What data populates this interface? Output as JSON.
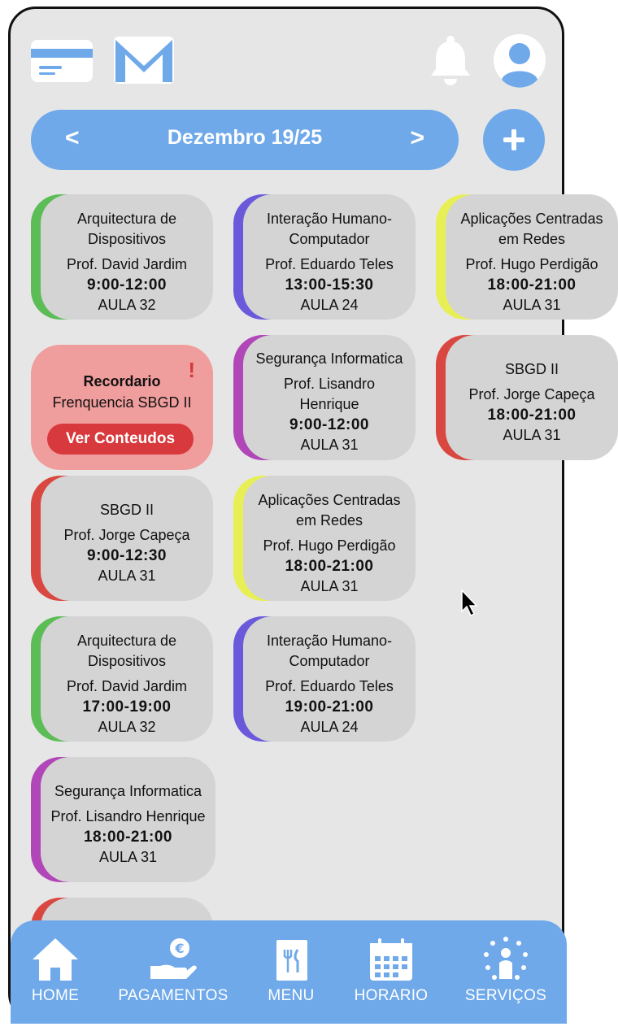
{
  "header": {
    "card_icon": "credit-card-icon",
    "mail_icon": "mail-icon",
    "bell_icon": "bell-icon",
    "avatar_icon": "user-avatar-icon"
  },
  "calendar": {
    "prev": "<",
    "month_label": "Dezembro 19/25",
    "next": ">",
    "add": "+"
  },
  "colors": {
    "accent": "#6fa9ea",
    "card_bg": "#d4d4d4",
    "green": "#5cbd56",
    "purple": "#6a5adb",
    "yellow": "#e8ef55",
    "red": "#d94840",
    "magenta": "#b146b8",
    "reminder_bg": "#f09d9d",
    "reminder_btn": "#d8393c"
  },
  "courses": [
    {
      "name": "Arquitectura de Dispositivos",
      "prof": "Prof. David Jardim",
      "time": "9:00-12:00",
      "room": "AULA 32",
      "color": "#5cbd56"
    },
    {
      "name": "Interação Humano-Computador",
      "prof": "Prof. Eduardo Teles",
      "time": "13:00-15:30",
      "room": "AULA 24",
      "color": "#6a5adb"
    },
    {
      "name": "Aplicações Centradas em Redes",
      "prof": "Prof. Hugo Perdigão",
      "time": "18:00-21:00",
      "room": "AULA 31",
      "color": "#e8ef55"
    },
    {
      "name": "Segurança Informatica",
      "prof": "Prof. Lisandro Henrique",
      "time": "9:00-12:00",
      "room": "AULA 31",
      "color": "#b146b8"
    },
    {
      "name": "SBGD II",
      "prof": "Prof. Jorge Capeça",
      "time": "18:00-21:00",
      "room": "AULA 31",
      "color": "#d94840"
    },
    {
      "name": "SBGD II",
      "prof": "Prof. Jorge Capeça",
      "time": "9:00-12:30",
      "room": "AULA 31",
      "color": "#d94840"
    },
    {
      "name": "Aplicações Centradas em Redes",
      "prof": "Prof. Hugo Perdigão",
      "time": "18:00-21:00",
      "room": "AULA 31",
      "color": "#e8ef55"
    },
    {
      "name": "Arquitectura de Dispositivos",
      "prof": "Prof. David Jardim",
      "time": "17:00-19:00",
      "room": "AULA 32",
      "color": "#5cbd56"
    },
    {
      "name": "Interação Humano-Computador",
      "prof": "Prof. Eduardo Teles",
      "time": "19:00-21:00",
      "room": "AULA 24",
      "color": "#6a5adb"
    },
    {
      "name": "Segurança Informatica",
      "prof": "Prof. Lisandro Henrique",
      "time": "18:00-21:00",
      "room": "AULA 31",
      "color": "#b146b8"
    }
  ],
  "reminder": {
    "alert": "!",
    "title": "Recordario",
    "subtitle": "Frenquencia SBGD II",
    "button": "Ver Conteudos"
  },
  "tabs": [
    {
      "label": "HOME",
      "icon": "home-icon"
    },
    {
      "label": "PAGAMENTOS",
      "icon": "payment-icon"
    },
    {
      "label": "MENU",
      "icon": "menu-icon"
    },
    {
      "label": "HORARIO",
      "icon": "calendar-icon"
    },
    {
      "label": "SERVIÇOS",
      "icon": "services-icon"
    }
  ]
}
